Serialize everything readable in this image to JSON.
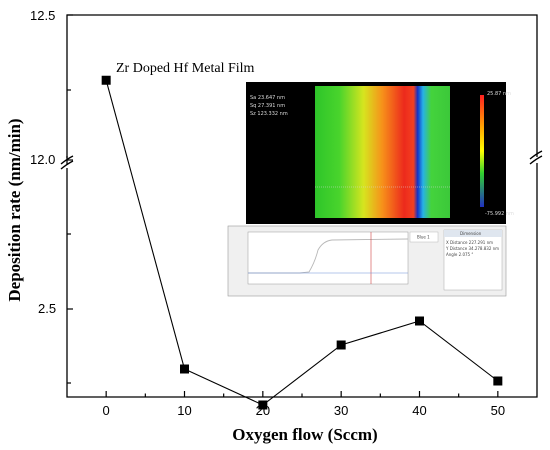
{
  "chart_data": {
    "type": "line",
    "xlabel": "Oxygen  flow (Sccm)",
    "ylabel": "Deposition rate (nm/min)",
    "x_ticks": [
      "0",
      "10",
      "20",
      "30",
      "40",
      "50"
    ],
    "y_ticks": [
      "2.5",
      "12.0",
      "12.5"
    ],
    "xlim": [
      -5,
      55
    ],
    "y_axis_break": true,
    "x": [
      0,
      10,
      20,
      30,
      40,
      50
    ],
    "y": [
      12.275,
      2.45,
      2.42,
      2.47,
      2.49,
      2.44
    ],
    "series_marker": "filled-square",
    "series_color": "#000000",
    "annotation": "Zr Doped Hf Metal Film",
    "grid": false
  },
  "inset": {
    "afm_readout": [
      "Sa 23.647  nm",
      "Sq 27.391  nm",
      "Sz 123.332 nm"
    ],
    "afm_scale": [
      "25.87 nm",
      "-75.992 nm"
    ],
    "profile_legend": "Blue 1",
    "panel_header": "Dimension",
    "panel_rows": [
      "X Distance  227.291   nm",
      "Y Distance  34.278.832  nm",
      "Angle  2.075   °"
    ]
  }
}
